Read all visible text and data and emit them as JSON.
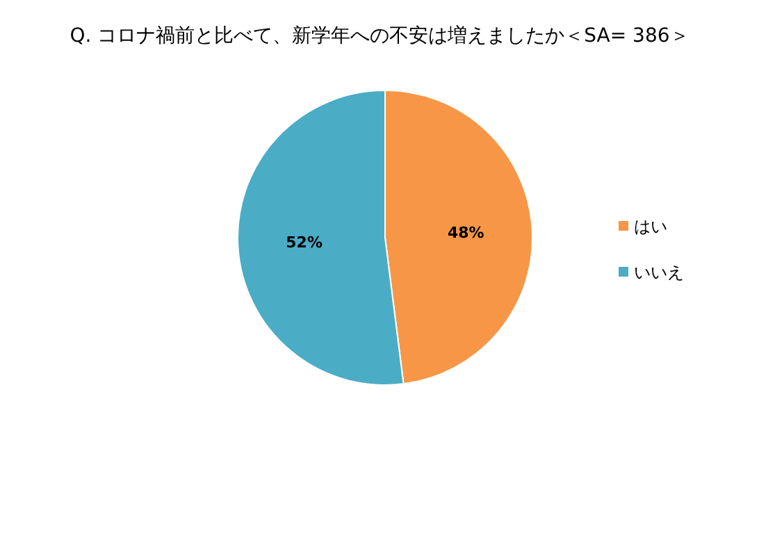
{
  "chart_data": {
    "type": "pie",
    "title": "Q. コロナ禍前と比べて、新学年への不安は増えましたか＜SA= 386＞",
    "categories": [
      "はい",
      "いいえ"
    ],
    "values": [
      48,
      52
    ],
    "colors": [
      "#f79646",
      "#4bacc6"
    ],
    "value_labels": [
      "48%",
      "52%"
    ],
    "legend": "right"
  }
}
